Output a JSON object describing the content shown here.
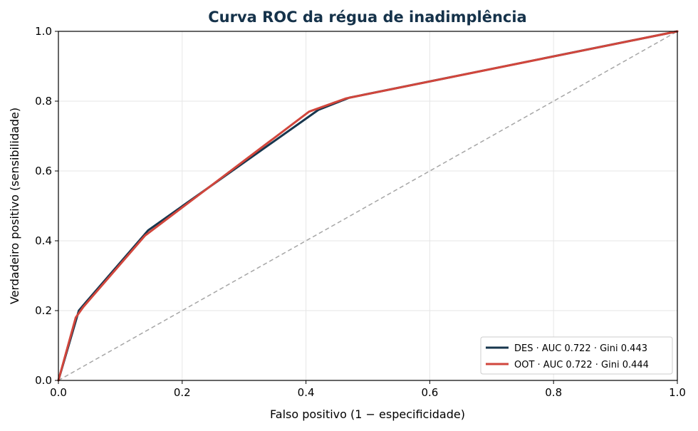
{
  "colors": {
    "title": "#15324a",
    "des": "#17364e",
    "oot": "#d1463c",
    "diagonal": "#a6a6a6",
    "grid": "#e6e6e6"
  },
  "chart_data": {
    "type": "line",
    "title": "Curva ROC da régua de inadimplência",
    "xlabel": "Falso positivo (1 − especificidade)",
    "ylabel": "Verdadeiro positivo (sensibilidade)",
    "xlim": [
      0,
      1
    ],
    "ylim": [
      0,
      1
    ],
    "grid": true,
    "legend_position": "bottom-right",
    "x_ticks": [
      {
        "value": 0.0,
        "label": "0.0"
      },
      {
        "value": 0.2,
        "label": "0.2"
      },
      {
        "value": 0.4,
        "label": "0.4"
      },
      {
        "value": 0.6,
        "label": "0.6"
      },
      {
        "value": 0.8,
        "label": "0.8"
      },
      {
        "value": 1.0,
        "label": "1.0"
      }
    ],
    "y_ticks": [
      {
        "value": 0.0,
        "label": "0.0"
      },
      {
        "value": 0.2,
        "label": "0.2"
      },
      {
        "value": 0.4,
        "label": "0.4"
      },
      {
        "value": 0.6,
        "label": "0.6"
      },
      {
        "value": 0.8,
        "label": "0.8"
      },
      {
        "value": 1.0,
        "label": "1.0"
      }
    ],
    "series": [
      {
        "name": "DES · AUC 0.722 · Gini 0.443",
        "color_key": "des",
        "x": [
          0.0,
          0.033,
          0.045,
          0.145,
          0.42,
          0.47,
          1.0
        ],
        "y": [
          0.0,
          0.2,
          0.225,
          0.43,
          0.775,
          0.81,
          1.0
        ]
      },
      {
        "name": "OOT · AUC 0.722 · Gini 0.444",
        "color_key": "oot",
        "x": [
          0.0,
          0.028,
          0.04,
          0.14,
          0.405,
          0.465,
          1.0
        ],
        "y": [
          0.0,
          0.18,
          0.21,
          0.415,
          0.77,
          0.808,
          1.0
        ]
      }
    ],
    "reference_line": {
      "x": [
        0,
        1
      ],
      "y": [
        0,
        1
      ],
      "style": "dashed"
    }
  }
}
